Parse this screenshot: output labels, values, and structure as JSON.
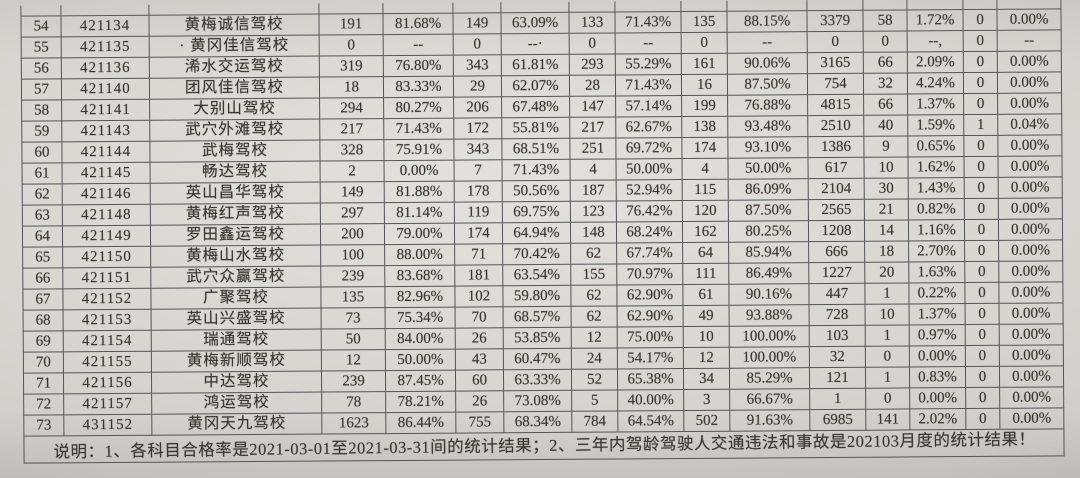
{
  "colors": {
    "paper": "#d7d4d0",
    "ink": "#3a3733",
    "grid_line": "#54555a"
  },
  "table": {
    "rows": [
      {
        "seq": "54",
        "code": "421134",
        "name": "黄梅诚信驾校",
        "values": [
          "191",
          "81.68%",
          "149",
          "63.09%",
          "133",
          "71.43%",
          "135",
          "88.15%",
          "3379",
          "58",
          "1.72%",
          "0",
          "0.00%"
        ]
      },
      {
        "seq": "55",
        "code": "421135",
        "name": "· 黄冈佳信驾校",
        "values": [
          "0",
          "--",
          "0",
          "--·",
          "0",
          "--",
          "0",
          "--",
          "0",
          "0",
          "--,",
          "0",
          "--"
        ]
      },
      {
        "seq": "56",
        "code": "421136",
        "name": "浠水交运驾校",
        "values": [
          "319",
          "76.80%",
          "343",
          "61.81%",
          "293",
          "55.29%",
          "161",
          "90.06%",
          "3165",
          "66",
          "2.09%",
          "0",
          "0.00%"
        ]
      },
      {
        "seq": "57",
        "code": "421140",
        "name": "团风佳信驾校",
        "values": [
          "18",
          "83.33%",
          "29",
          "62.07%",
          "28",
          "71.43%",
          "16",
          "87.50%",
          "754",
          "32",
          "4.24%",
          "0",
          "0.00%"
        ]
      },
      {
        "seq": "58",
        "code": "421141",
        "name": "大别山驾校",
        "values": [
          "294",
          "80.27%",
          "206",
          "67.48%",
          "147",
          "57.14%",
          "199",
          "76.88%",
          "4815",
          "66",
          "1.37%",
          "0",
          "0.00%"
        ]
      },
      {
        "seq": "59",
        "code": "421143",
        "name": "武穴外滩驾校",
        "values": [
          "217",
          "71.43%",
          "172",
          "55.81%",
          "217",
          "62.67%",
          "138",
          "93.48%",
          "2510",
          "40",
          "1.59%",
          "1",
          "0.04%"
        ]
      },
      {
        "seq": "60",
        "code": "421144",
        "name": "武梅驾校",
        "values": [
          "328",
          "75.91%",
          "343",
          "68.51%",
          "251",
          "69.72%",
          "174",
          "93.10%",
          "1386",
          "9",
          "0.65%",
          "0",
          "0.00%"
        ]
      },
      {
        "seq": "61",
        "code": "421145",
        "name": "畅达驾校",
        "values": [
          "2",
          "0.00%",
          "7",
          "71.43%",
          "4",
          "50.00%",
          "4",
          "50.00%",
          "617",
          "10",
          "1.62%",
          "0",
          "0.00%"
        ]
      },
      {
        "seq": "62",
        "code": "421146",
        "name": "英山昌华驾校",
        "values": [
          "149",
          "81.88%",
          "178",
          "50.56%",
          "187",
          "52.94%",
          "115",
          "86.09%",
          "2104",
          "30",
          "1.43%",
          "0",
          "0.00%"
        ]
      },
      {
        "seq": "63",
        "code": "421148",
        "name": "黄梅红声驾校",
        "values": [
          "297",
          "81.14%",
          "119",
          "69.75%",
          "123",
          "76.42%",
          "120",
          "87.50%",
          "2565",
          "21",
          "0.82%",
          "0",
          "0.00%"
        ]
      },
      {
        "seq": "64",
        "code": "421149",
        "name": "罗田鑫运驾校",
        "values": [
          "200",
          "79.00%",
          "174",
          "64.94%",
          "148",
          "68.24%",
          "162",
          "80.25%",
          "1208",
          "14",
          "1.16%",
          "0",
          "0.00%"
        ]
      },
      {
        "seq": "65",
        "code": "421150",
        "name": "黄梅山水驾校",
        "values": [
          "100",
          "88.00%",
          "71",
          "70.42%",
          "62",
          "67.74%",
          "64",
          "85.94%",
          "666",
          "18",
          "2.70%",
          "0",
          "0.00%"
        ]
      },
      {
        "seq": "66",
        "code": "421151",
        "name": "武穴众赢驾校",
        "values": [
          "239",
          "83.68%",
          "181",
          "63.54%",
          "155",
          "70.97%",
          "111",
          "86.49%",
          "1227",
          "20",
          "1.63%",
          "0",
          "0.00%"
        ]
      },
      {
        "seq": "67",
        "code": "421152",
        "name": "广聚驾校",
        "values": [
          "135",
          "82.96%",
          "102",
          "59.80%",
          "62",
          "62.90%",
          "61",
          "90.16%",
          "447",
          "1",
          "0.22%",
          "0",
          "0.00%"
        ]
      },
      {
        "seq": "68",
        "code": "421153",
        "name": "英山兴盛驾校",
        "values": [
          "73",
          "75.34%",
          "70",
          "68.57%",
          "62",
          "62.90%",
          "49",
          "93.88%",
          "728",
          "10",
          "1.37%",
          "0",
          "0.00%"
        ]
      },
      {
        "seq": "69",
        "code": "421154",
        "name": "瑞通驾校",
        "values": [
          "50",
          "84.00%",
          "26",
          "53.85%",
          "12",
          "75.00%",
          "10",
          "100.00%",
          "103",
          "1",
          "0.97%",
          "0",
          "0.00%"
        ]
      },
      {
        "seq": "70",
        "code": "421155",
        "name": "黄梅新顺驾校",
        "values": [
          "12",
          "50.00%",
          "43",
          "60.47%",
          "24",
          "54.17%",
          "12",
          "100.00%",
          "32",
          "0",
          "0.00%",
          "0",
          "0.00%"
        ]
      },
      {
        "seq": "71",
        "code": "421156",
        "name": "中达驾校",
        "values": [
          "239",
          "87.45%",
          "60",
          "63.33%",
          "52",
          "65.38%",
          "34",
          "85.29%",
          "121",
          "1",
          "0.83%",
          "0",
          "0.00%"
        ]
      },
      {
        "seq": "72",
        "code": "421157",
        "name": "鸿运驾校",
        "values": [
          "78",
          "78.21%",
          "26",
          "73.08%",
          "5",
          "40.00%",
          "3",
          "66.67%",
          "1",
          "0",
          "0.00%",
          "0",
          "0.00%"
        ]
      },
      {
        "seq": "73",
        "code": "431152",
        "name": "黄冈天九驾校",
        "values": [
          "1623",
          "86.44%",
          "755",
          "68.34%",
          "784",
          "64.54%",
          "502",
          "91.63%",
          "6985",
          "141",
          "2.02%",
          "0",
          "0.00%"
        ]
      }
    ],
    "note": "说明：1、各科目合格率是2021-03-01至2021-03-31间的统计结果；2、三年内驾龄驾驶人交通违法和事故是202103月度的统计结果！"
  }
}
